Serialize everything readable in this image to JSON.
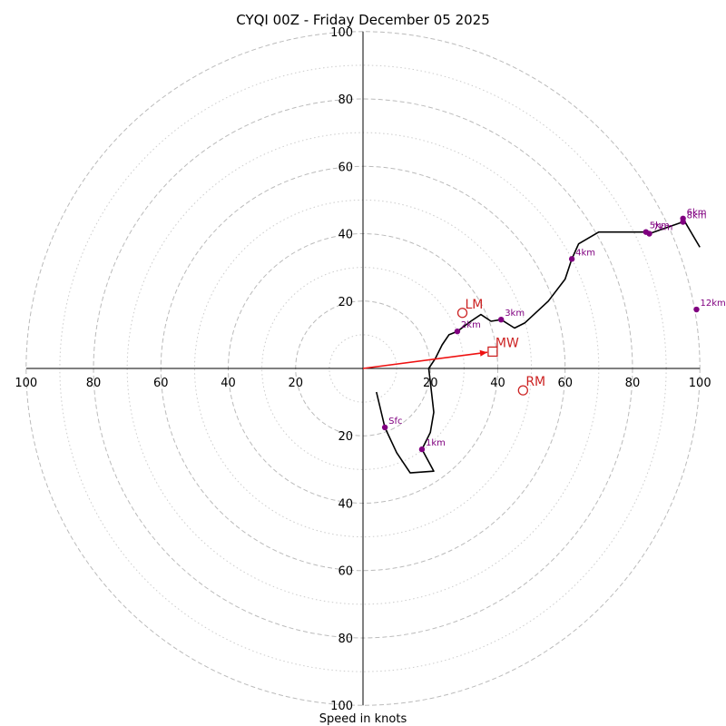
{
  "chart_data": {
    "type": "hodograph",
    "title": "CYQI 00Z - Friday December 05 2025",
    "xlabel": "Speed in knots",
    "axis_range": [
      -100,
      100
    ],
    "ring_major": [
      20,
      40,
      60,
      80,
      100
    ],
    "ring_minor": [
      10,
      30,
      50,
      70,
      90
    ],
    "tick_labels": {
      "x_left": [
        "100",
        "80",
        "60",
        "40",
        "20"
      ],
      "x_right": [
        "20",
        "40",
        "60",
        "80",
        "100"
      ],
      "y_top": [
        "100",
        "80",
        "60",
        "40",
        "20"
      ],
      "y_bottom": [
        "20",
        "40",
        "60",
        "80",
        "100"
      ]
    },
    "profile": [
      [
        4,
        -7
      ],
      [
        6.5,
        -17.5
      ],
      [
        10,
        -25
      ],
      [
        14,
        -31
      ],
      [
        21,
        -30.5
      ],
      [
        17.5,
        -24
      ],
      [
        20,
        -19
      ],
      [
        21,
        -13
      ],
      [
        20,
        -4
      ],
      [
        19.5,
        0
      ],
      [
        21.5,
        3
      ],
      [
        23.5,
        7
      ],
      [
        25.5,
        10
      ],
      [
        28,
        11
      ],
      [
        32,
        14
      ],
      [
        35,
        16
      ],
      [
        38,
        14
      ],
      [
        41,
        14.5
      ],
      [
        45,
        12
      ],
      [
        48,
        13.5
      ],
      [
        55,
        20
      ],
      [
        60,
        26.5
      ],
      [
        62,
        32.5
      ],
      [
        64,
        37
      ],
      [
        70,
        40.5
      ],
      [
        80,
        40.5
      ],
      [
        84,
        40.5
      ],
      [
        85,
        40
      ],
      [
        95,
        43.5
      ],
      [
        95,
        44.5
      ],
      [
        100,
        36
      ]
    ],
    "height_markers": [
      {
        "label": "Sfc",
        "u": 6.5,
        "v": -17.5
      },
      {
        "label": "1km",
        "u": 17.5,
        "v": -24
      },
      {
        "label": "2km",
        "u": 28,
        "v": 11
      },
      {
        "label": "3km",
        "u": 41,
        "v": 14.5
      },
      {
        "label": "4km",
        "u": 62,
        "v": 32.5
      },
      {
        "label": "5km",
        "u": 84,
        "v": 40.5
      },
      {
        "label": "7km",
        "u": 85,
        "v": 40
      },
      {
        "label": "6km",
        "u": 95,
        "v": 44.5
      },
      {
        "label": "8km",
        "u": 95,
        "v": 43.5
      },
      {
        "label": "12km",
        "u": 99,
        "v": 17.5
      }
    ],
    "motion_markers": [
      {
        "label": "LM",
        "symbol": "circle",
        "u": 29.5,
        "v": 16.5
      },
      {
        "label": "MW",
        "symbol": "square",
        "u": 38.5,
        "v": 5
      },
      {
        "label": "RM",
        "symbol": "circle",
        "u": 47.5,
        "v": -6.5
      }
    ],
    "shear_vector": {
      "u": 38.5,
      "v": 5
    },
    "colors": {
      "profile": "#000000",
      "markers": "#800080",
      "motion": "#cc2222",
      "arrow": "#ee1111",
      "grid": "#bbbbbb"
    }
  }
}
